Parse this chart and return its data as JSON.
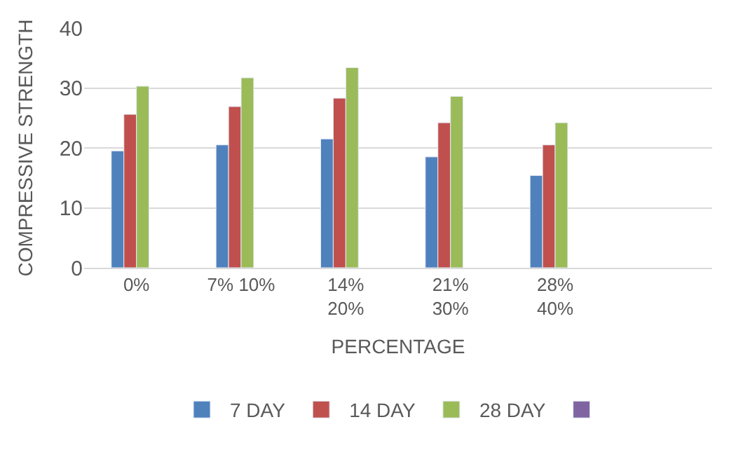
{
  "chart_data": {
    "type": "bar",
    "xlabel": "PERCENTAGE",
    "ylabel": "COMPRESSIVE STRENGTH",
    "categories": [
      "0%",
      "7% 10%",
      "14%\n20%",
      "21%\n30%",
      "28%\n40%",
      null
    ],
    "series": [
      {
        "name": "7 DAY",
        "color": "#4f81bd",
        "values": [
          19.5,
          20.5,
          21.5,
          18.5,
          15.4,
          null
        ]
      },
      {
        "name": "14 DAY",
        "color": "#c0504d",
        "values": [
          25.6,
          26.9,
          28.3,
          24.2,
          20.5,
          null
        ]
      },
      {
        "name": "28 DAY",
        "color": "#9bbb59",
        "values": [
          30.3,
          31.7,
          33.4,
          28.6,
          24.2,
          null
        ]
      },
      {
        "color": "#8064a2",
        "values": [
          null,
          null,
          null,
          null,
          null,
          null
        ]
      }
    ],
    "ylim": [
      0,
      40
    ],
    "yticks": [
      0,
      10,
      20,
      30,
      40
    ],
    "grid": "y",
    "legend": "bottom"
  }
}
